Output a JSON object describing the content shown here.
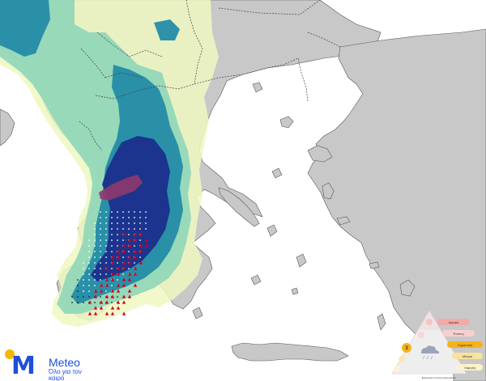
{
  "brand": {
    "name": "Meteo",
    "tagline": "Όλο για τον καιρό",
    "colors": {
      "blue": "#1d4fd8",
      "yellow": "#f2b705"
    }
  },
  "legend": {
    "active_level": "3",
    "levels": [
      {
        "label": "Ακραία",
        "color": "#f4a9a9"
      },
      {
        "label": "Έντονη",
        "color": "#f8cfcf"
      },
      {
        "label": "Σημαντική",
        "color": "#f5b21a"
      },
      {
        "label": "Μέτρια",
        "color": "#fbe29a"
      },
      {
        "label": "Χαμηλή",
        "color": "#fdf3c8"
      }
    ],
    "caption": "Εκτιμώμενη ένταση φαινομένων"
  },
  "palette": {
    "sea": "#ffffff",
    "land": "#c8c8c8",
    "border": "#404040",
    "precip_light": "#eef8c2",
    "precip_medium": "#8fd6b8",
    "precip_heavy": "#1f8aa6",
    "precip_intense": "#1b2f8c",
    "precip_extreme": "#8e3a6b",
    "hail_marker": "#d0021b",
    "wind_marker": "#ffffff"
  }
}
